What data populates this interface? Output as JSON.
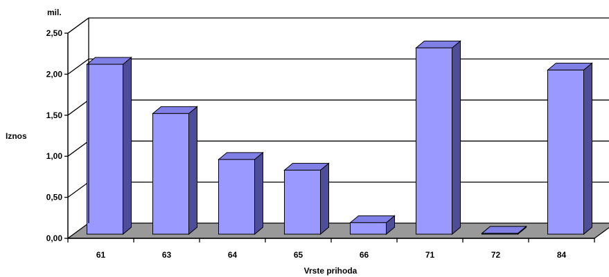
{
  "chart_data": {
    "type": "bar",
    "title": "",
    "unit_label": "mil.",
    "xlabel": "Vrste prihoda",
    "ylabel": "Iznos",
    "categories": [
      "61",
      "63",
      "64",
      "65",
      "66",
      "71",
      "72",
      "84"
    ],
    "values": [
      2.07,
      1.47,
      0.91,
      0.78,
      0.14,
      2.27,
      0.01,
      2.0
    ],
    "ylim": [
      0,
      2.5
    ],
    "yticks": [
      "0,00",
      "0,50",
      "1,00",
      "1,50",
      "2,00",
      "2,50"
    ],
    "grid": true,
    "legend": "none",
    "three_d": true,
    "colors": {
      "bar_front": "#9999ff",
      "bar_side": "#4d4d99",
      "bar_top": "#7f7fe6",
      "floor": "#999999",
      "wall": "#ffffff",
      "gridline": "#000000"
    }
  }
}
